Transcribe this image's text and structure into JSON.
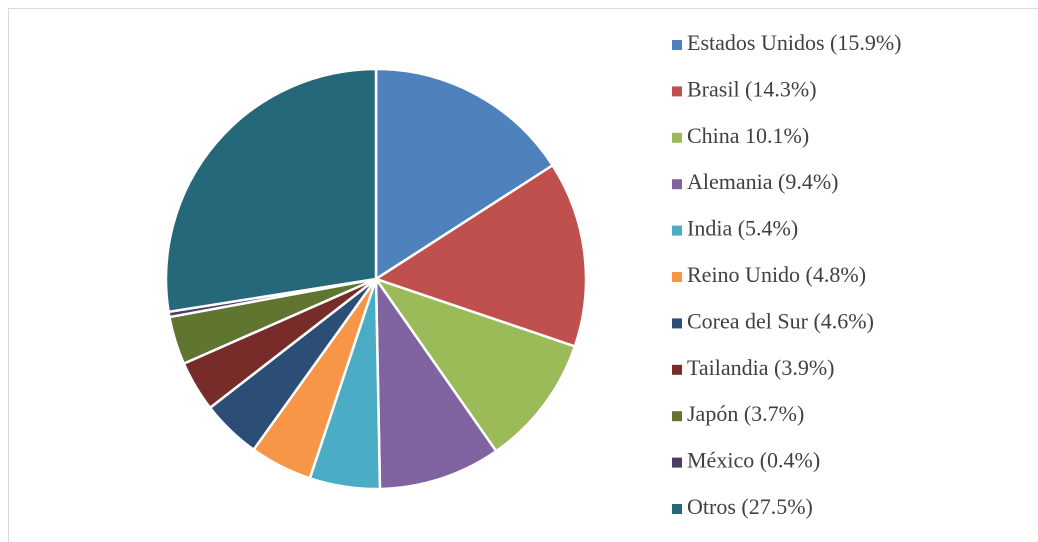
{
  "chart_data": {
    "type": "pie",
    "categories": [
      "Estados Unidos (15.9%)",
      "Brasil (14.3%)",
      "China 10.1%)",
      "Alemania (9.4%)",
      "India (5.4%)",
      "Reino Unido (4.8%)",
      "Corea del Sur (4.6%)",
      "Tailandia (3.9%)",
      "Japón (3.7%)",
      "México (0.4%)",
      "Otros (27.5%)"
    ],
    "values": [
      15.9,
      14.3,
      10.1,
      9.4,
      5.4,
      4.8,
      4.6,
      3.9,
      3.7,
      0.4,
      27.5
    ],
    "colors": [
      "#4f81bd",
      "#c0504d",
      "#9bbb59",
      "#8064a2",
      "#4bacc6",
      "#f79646",
      "#2c4d75",
      "#772c2a",
      "#5f7530",
      "#4d3b62",
      "#24687a"
    ],
    "legend": "right"
  }
}
